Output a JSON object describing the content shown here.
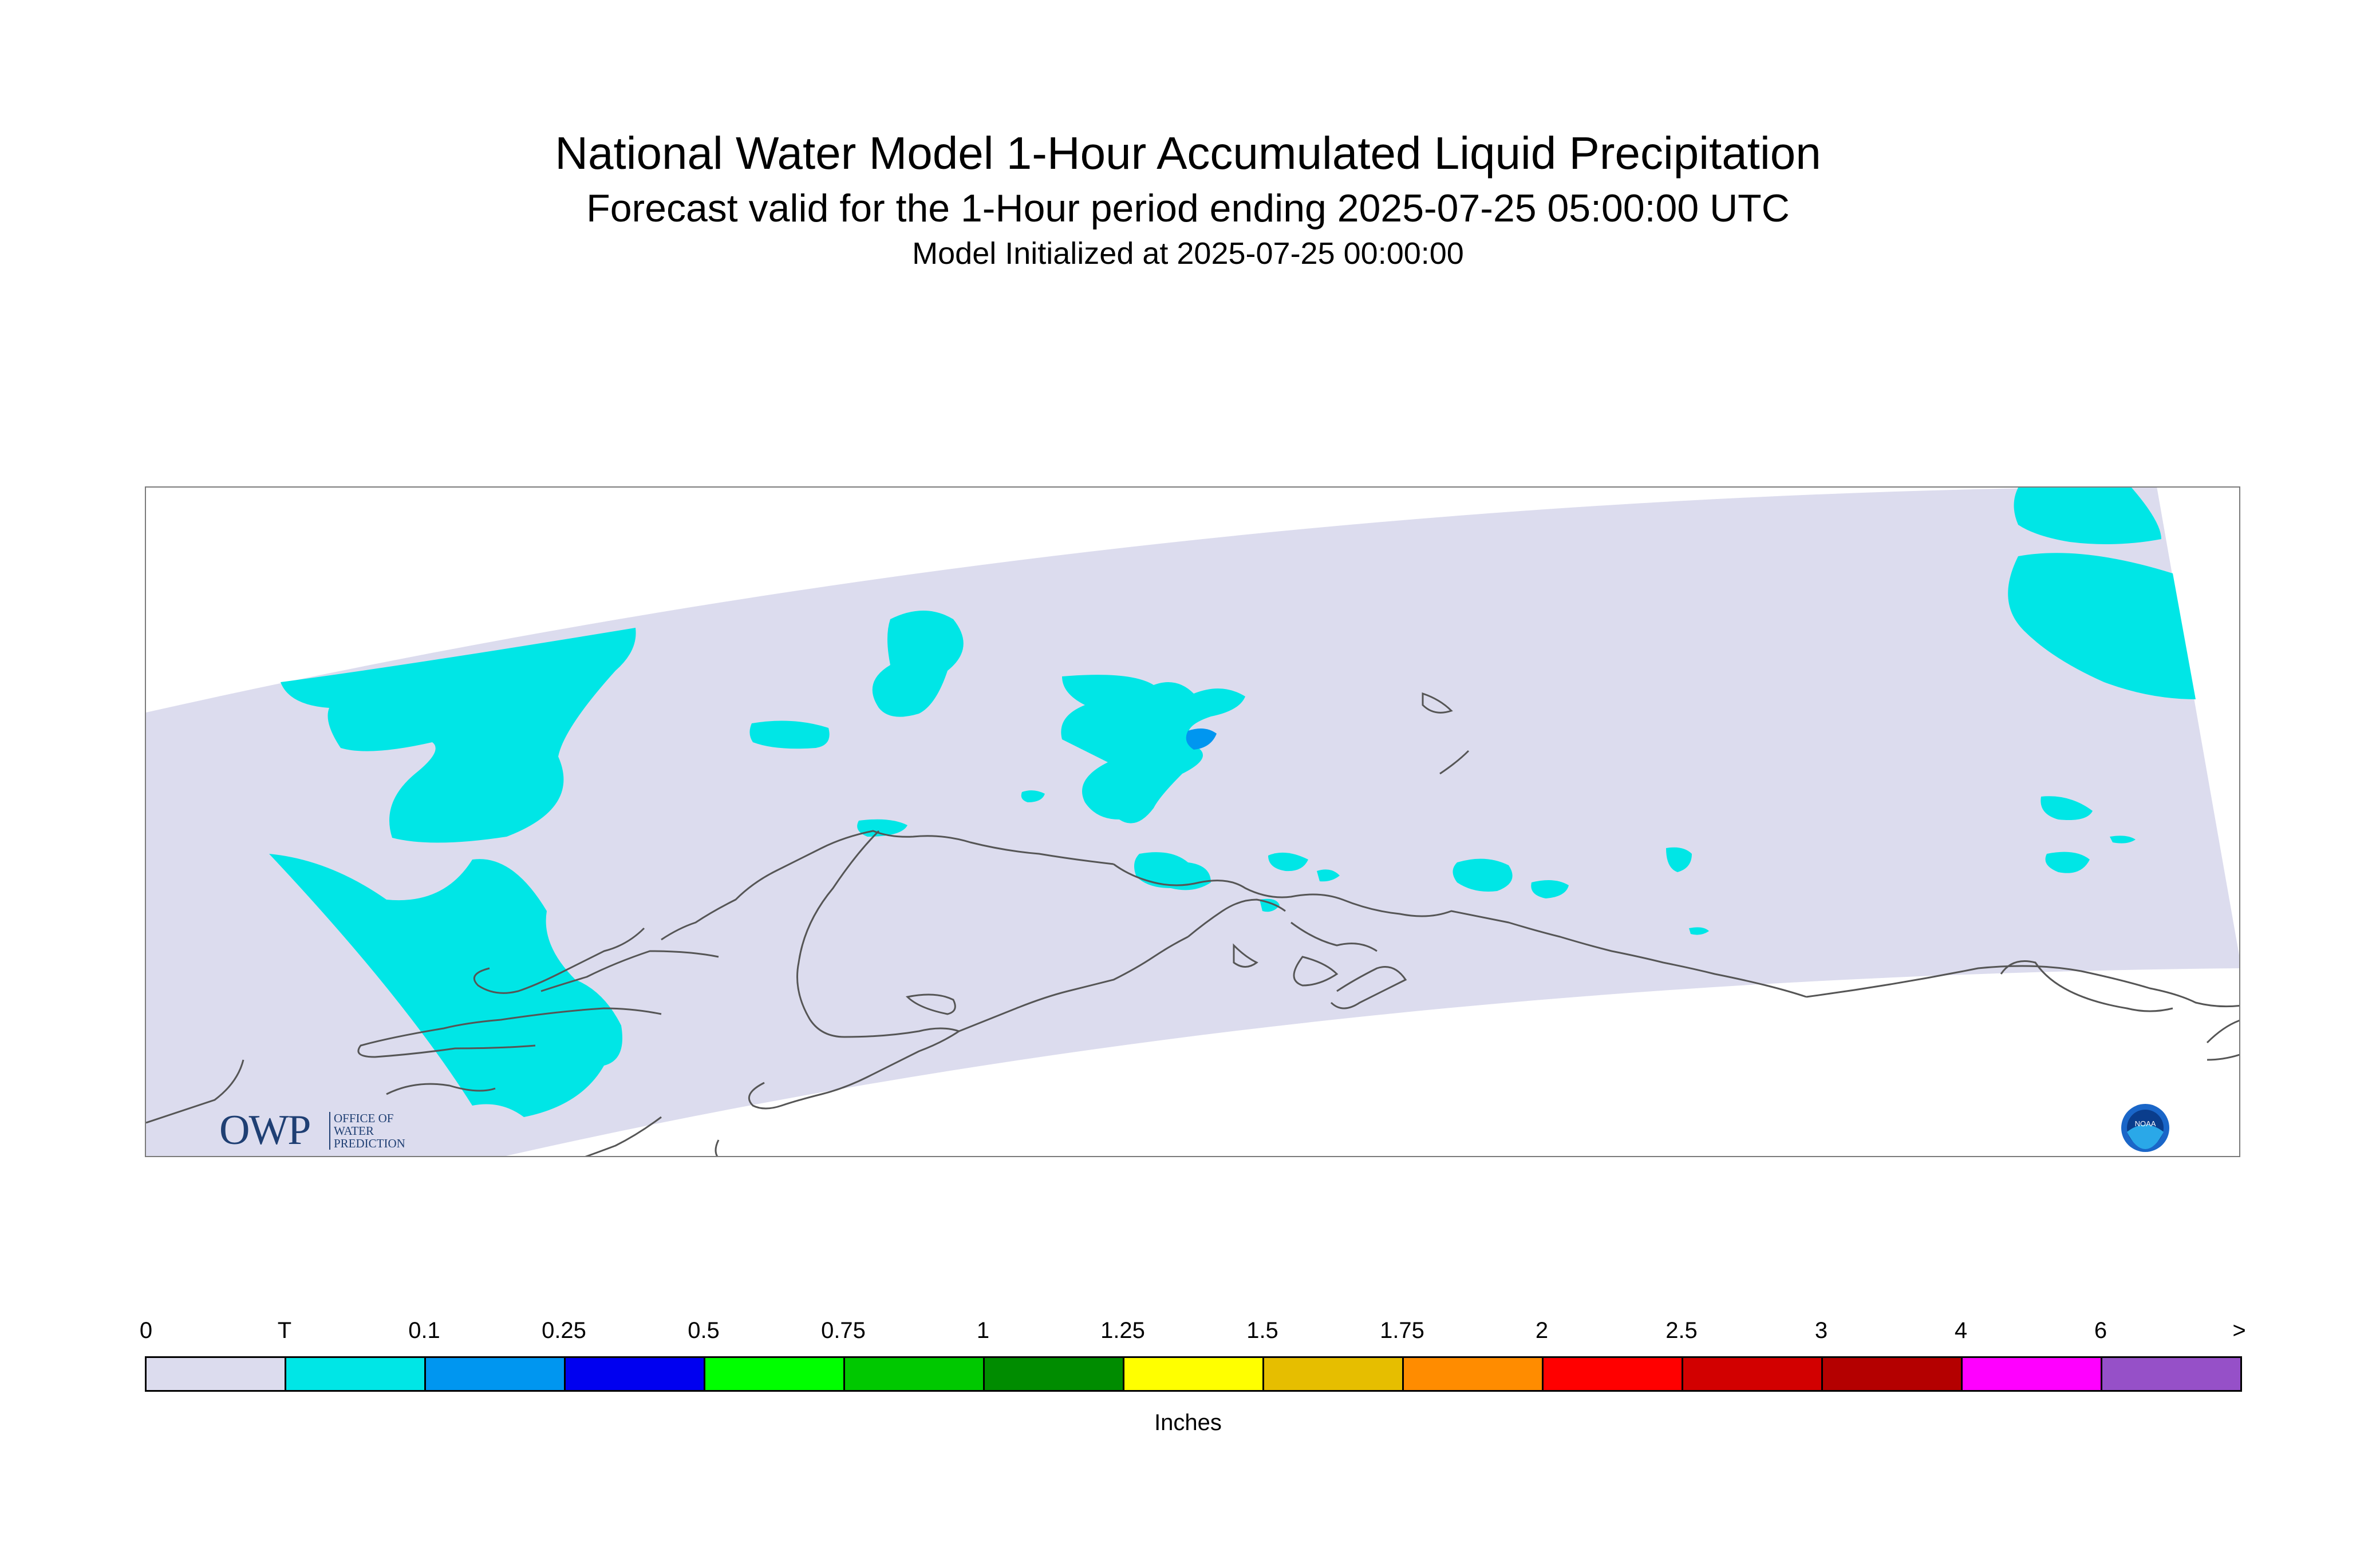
{
  "header": {
    "title": "National Water Model 1-Hour Accumulated Liquid Precipitation",
    "subtitle": "Forecast valid for the 1-Hour period ending 2025-07-25 05:00:00 UTC",
    "initialized": "Model Initialized at 2025-07-25 00:00:00"
  },
  "map": {
    "domain_color": "#dcdcee",
    "coast_color": "#555555",
    "frame_color": "#7a7a7a"
  },
  "logos": {
    "owp_letters": "OWP",
    "owp_line1": "OFFICE OF",
    "owp_line2": "WATER",
    "owp_line3": "PREDICTION",
    "noaa_text": "NOAA"
  },
  "legend": {
    "units": "Inches",
    "tick_labels": [
      "0",
      "T",
      "0.1",
      "0.25",
      "0.5",
      "0.75",
      "1",
      "1.25",
      "1.5",
      "1.75",
      "2",
      "2.5",
      "3",
      "4",
      "6",
      ">"
    ],
    "colors": [
      "#dcdcee",
      "#00e6e6",
      "#0096f0",
      "#0000f0",
      "#00ff00",
      "#00c800",
      "#008c00",
      "#ffff00",
      "#e6be00",
      "#ff8c00",
      "#ff0000",
      "#d20000",
      "#b40000",
      "#ff00ff",
      "#9650c8"
    ]
  },
  "chart_data": {
    "type": "heatmap",
    "title": "National Water Model 1-Hour Accumulated Liquid Precipitation",
    "subtitle": "Forecast valid for the 1-Hour period ending 2025-07-25 05:00:00 UTC",
    "valid_time": "2025-07-25 05:00:00 UTC",
    "init_time": "2025-07-25 00:00:00",
    "colorbar_units": "Inches",
    "bins": [
      "0",
      "T",
      "0.1",
      "0.25",
      "0.5",
      "0.75",
      "1",
      "1.25",
      "1.5",
      "1.75",
      "2",
      "2.5",
      "3",
      "4",
      "6",
      ">"
    ],
    "observed_categories": [
      "0",
      "T",
      "0.1"
    ]
  }
}
